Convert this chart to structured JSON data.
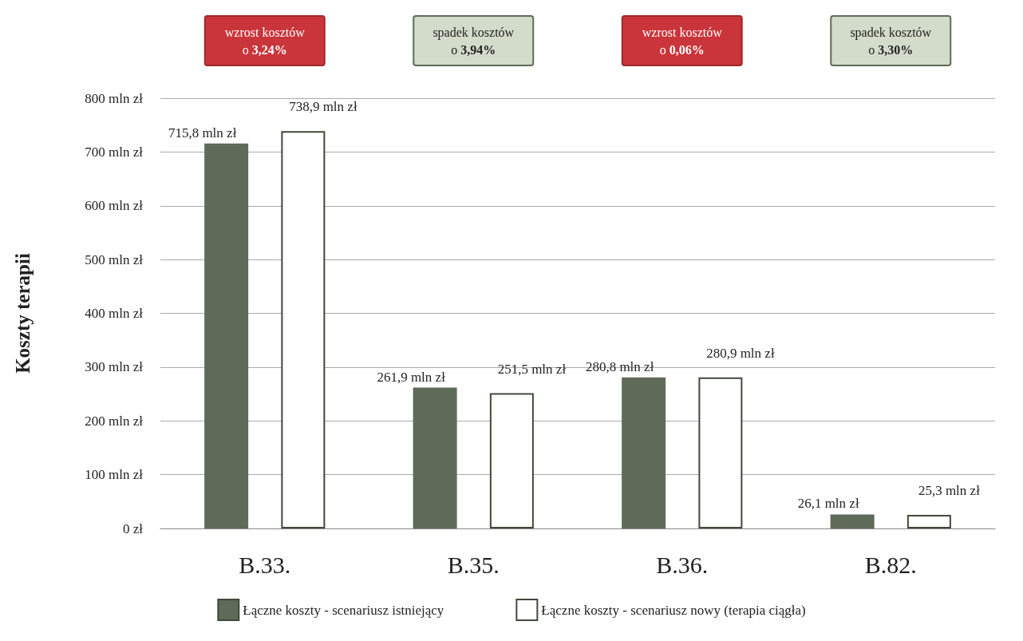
{
  "chart_data": {
    "type": "bar",
    "ylabel": "Koszty terapii",
    "categories": [
      "B.33.",
      "B.35.",
      "B.36.",
      "B.82."
    ],
    "series": [
      {
        "name": "Łączne koszty - scenariusz istniejący",
        "color": "#5f6b59",
        "values": [
          715.8,
          261.9,
          280.8,
          26.1
        ],
        "value_labels": [
          "715,8 mln zł",
          "261,9 mln zł",
          "280,8 mln zł",
          "26,1 mln zł"
        ]
      },
      {
        "name": "Łączne koszty - scenariusz nowy (terapia ciągła)",
        "color": "#ffffff",
        "values": [
          738.9,
          251.5,
          280.9,
          25.3
        ],
        "value_labels": [
          "738,9 mln zł",
          "251,5 mln zł",
          "280,9 mln zł",
          "25,3 mln zł"
        ]
      }
    ],
    "ylim": [
      0,
      800
    ],
    "yticks": [
      {
        "value": 0,
        "label": "0 zł"
      },
      {
        "value": 100,
        "label": "100 mln zł"
      },
      {
        "value": 200,
        "label": "200 mln zł"
      },
      {
        "value": 300,
        "label": "300 mln zł"
      },
      {
        "value": 400,
        "label": "400 mln zł"
      },
      {
        "value": 500,
        "label": "500 mln zł"
      },
      {
        "value": 600,
        "label": "600 mln zł"
      },
      {
        "value": 700,
        "label": "700 mln zł"
      },
      {
        "value": 800,
        "label": "800 mln zł"
      }
    ],
    "grid": "y",
    "legend": "bottom",
    "annotations": [
      "wzrost kosztów\no 3,24%",
      "spadek kosztów\no 3,94%",
      "wzrost kosztów\no 0,06%",
      "spadek kosztów\no 3,30%"
    ]
  }
}
